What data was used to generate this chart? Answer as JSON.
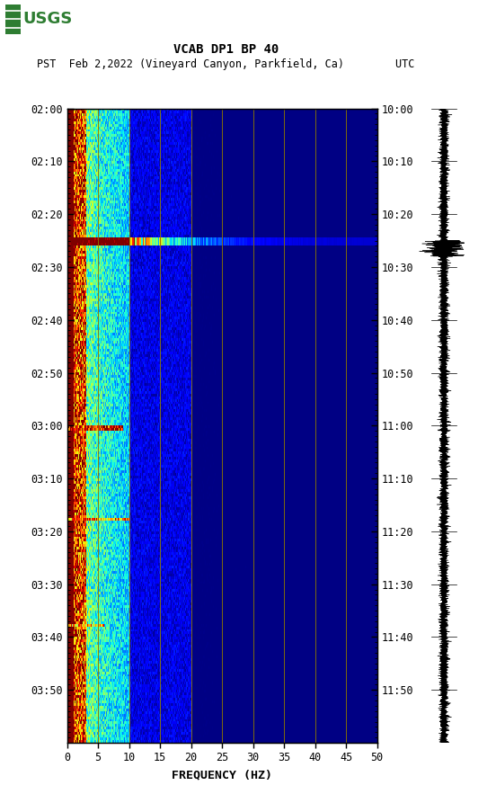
{
  "title_line1": "VCAB DP1 BP 40",
  "title_line2": "PST  Feb 2,2022 (Vineyard Canyon, Parkfield, Ca)        UTC",
  "xlabel": "FREQUENCY (HZ)",
  "left_times": [
    "02:00",
    "02:10",
    "02:20",
    "02:30",
    "02:40",
    "02:50",
    "03:00",
    "03:10",
    "03:20",
    "03:30",
    "03:40",
    "03:50"
  ],
  "right_times": [
    "10:00",
    "10:10",
    "10:20",
    "10:30",
    "10:40",
    "10:50",
    "11:00",
    "11:10",
    "11:20",
    "11:30",
    "11:40",
    "11:50"
  ],
  "freq_ticks": [
    0,
    5,
    10,
    15,
    20,
    25,
    30,
    35,
    40,
    45,
    50
  ],
  "freq_gridlines": [
    5,
    10,
    15,
    20,
    25,
    30,
    35,
    40,
    45
  ],
  "xmin": 0,
  "xmax": 50,
  "n_time_steps": 240,
  "n_freq_steps": 500,
  "background_color": "#ffffff",
  "gridline_color": "#8B7500",
  "tick_color": "#000000",
  "logo_green": "#2e7d32"
}
